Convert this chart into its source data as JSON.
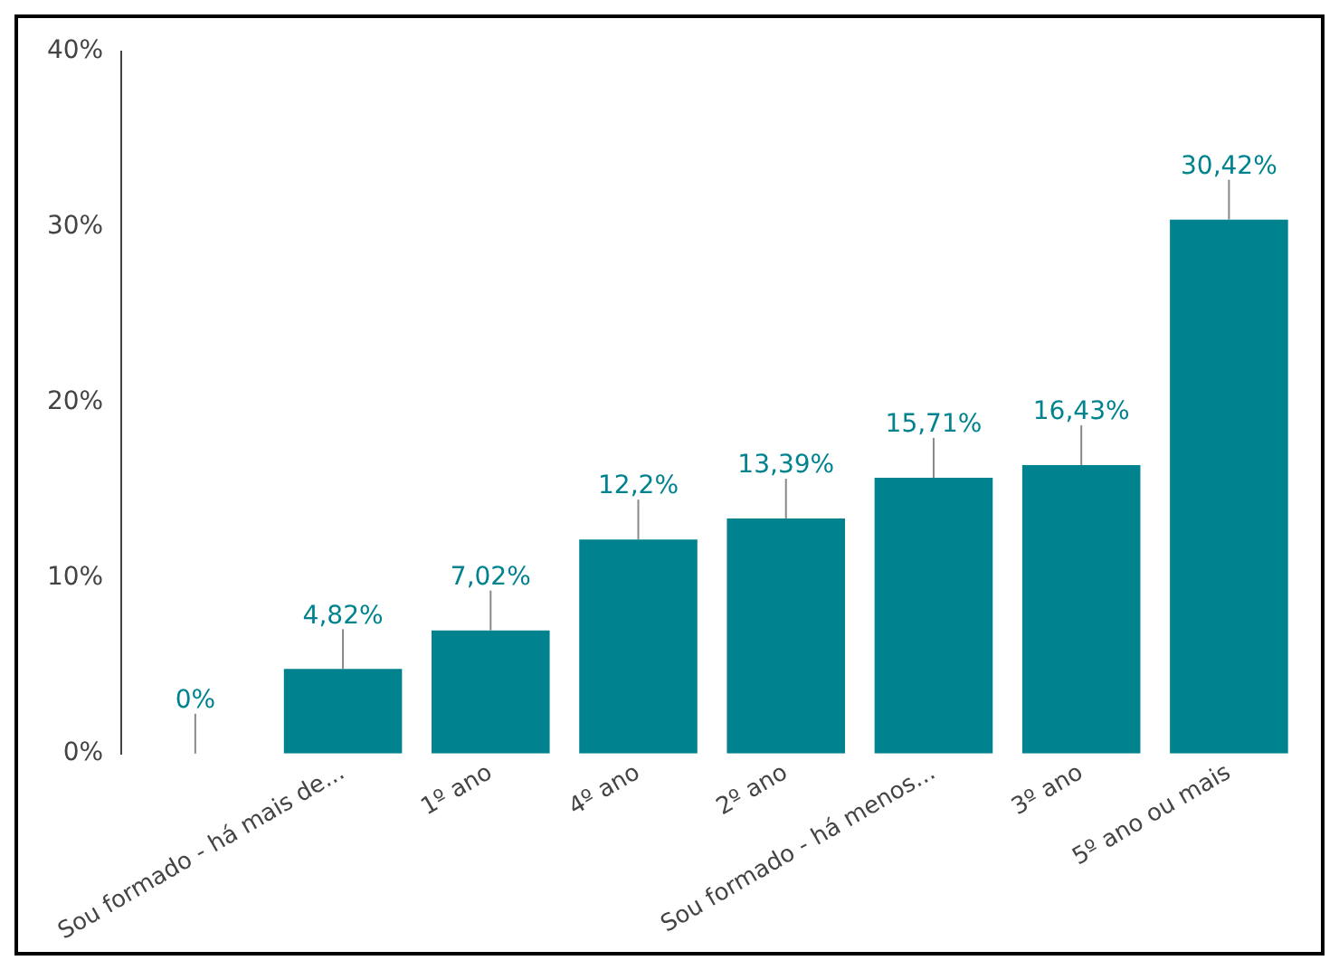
{
  "chart_data": {
    "type": "bar",
    "categories": [
      null,
      "Sou formado - há mais de...",
      "1º ano",
      "4º ano",
      "2º ano",
      "Sou formado - há menos...",
      "3º ano",
      "5º ano ou mais"
    ],
    "values": [
      0,
      4.82,
      7.02,
      12.2,
      13.39,
      15.71,
      16.43,
      30.42
    ],
    "color": "#00838f",
    "value_labels": [
      "0%",
      "4,82%",
      "7,02%",
      "12,2%",
      "13,39%",
      "15,71%",
      "16,43%",
      "30,42%"
    ],
    "ylim": [
      0,
      40
    ],
    "yticks": [
      {
        "value": 0,
        "label": "0%"
      },
      {
        "value": 10,
        "label": "10%"
      },
      {
        "value": 20,
        "label": "20%"
      },
      {
        "value": 30,
        "label": "30%"
      },
      {
        "value": 40,
        "label": "40%"
      }
    ],
    "grid": false,
    "legend": false
  }
}
